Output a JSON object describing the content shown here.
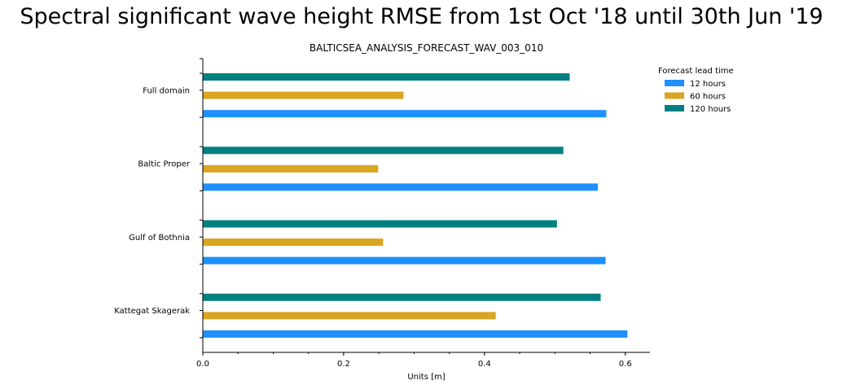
{
  "chart_data": {
    "type": "bar",
    "orientation": "horizontal",
    "suptitle": "Spectral significant wave height RMSE from 1st Oct '18 until 30th Jun '19",
    "title": "BALTICSEA_ANALYSIS_FORECAST_WAV_003_010",
    "xlabel": "Units [m]",
    "ylabel": "",
    "xlim": [
      0,
      0.635
    ],
    "xticks": [
      "0.0",
      "0.2",
      "0.4",
      "0.6"
    ],
    "categories": [
      "Full domain",
      "Baltic Proper",
      "Gulf of Bothnia",
      "Kattegat Skagerak"
    ],
    "legend_title": "Forecast lead time",
    "legend_position": "top-right",
    "grid": false,
    "series": [
      {
        "name": "12 hours",
        "color": "#1e90ff",
        "values": [
          0.573,
          0.561,
          0.572,
          0.603
        ]
      },
      {
        "name": "60 hours",
        "color": "#daa520",
        "values": [
          0.285,
          0.249,
          0.256,
          0.416
        ]
      },
      {
        "name": "120 hours",
        "color": "#008080",
        "values": [
          0.521,
          0.512,
          0.503,
          0.565
        ]
      }
    ]
  }
}
